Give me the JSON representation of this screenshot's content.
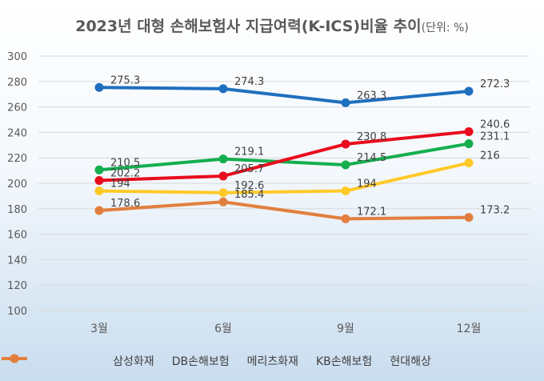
{
  "chart_data": {
    "type": "line",
    "title": "2023년 대형 손해보험사 지급여력(K-ICS)비율 추이",
    "unit_note": "(단위: %)",
    "categories": [
      "3월",
      "6월",
      "9월",
      "12월"
    ],
    "ylim": [
      100,
      300
    ],
    "yticks": [
      100,
      120,
      140,
      160,
      180,
      200,
      220,
      240,
      260,
      280,
      300
    ],
    "grid": true,
    "legend_position": "bottom",
    "series": [
      {
        "name": "삼성화재",
        "color": "#1F6FBF",
        "values": [
          275.3,
          274.3,
          263.3,
          272.3
        ]
      },
      {
        "name": "DB손해보험",
        "color": "#14AE4F",
        "values": [
          210.5,
          219.1,
          214.5,
          231.1
        ]
      },
      {
        "name": "메리츠화재",
        "color": "#E80C1C",
        "values": [
          202.2,
          205.7,
          230.8,
          240.6
        ]
      },
      {
        "name": "KB손해보험",
        "color": "#FFC928",
        "values": [
          194,
          192.6,
          194,
          216
        ]
      },
      {
        "name": "현대해상",
        "color": "#E27F3F",
        "values": [
          178.6,
          185.4,
          172.1,
          173.2
        ]
      }
    ]
  }
}
